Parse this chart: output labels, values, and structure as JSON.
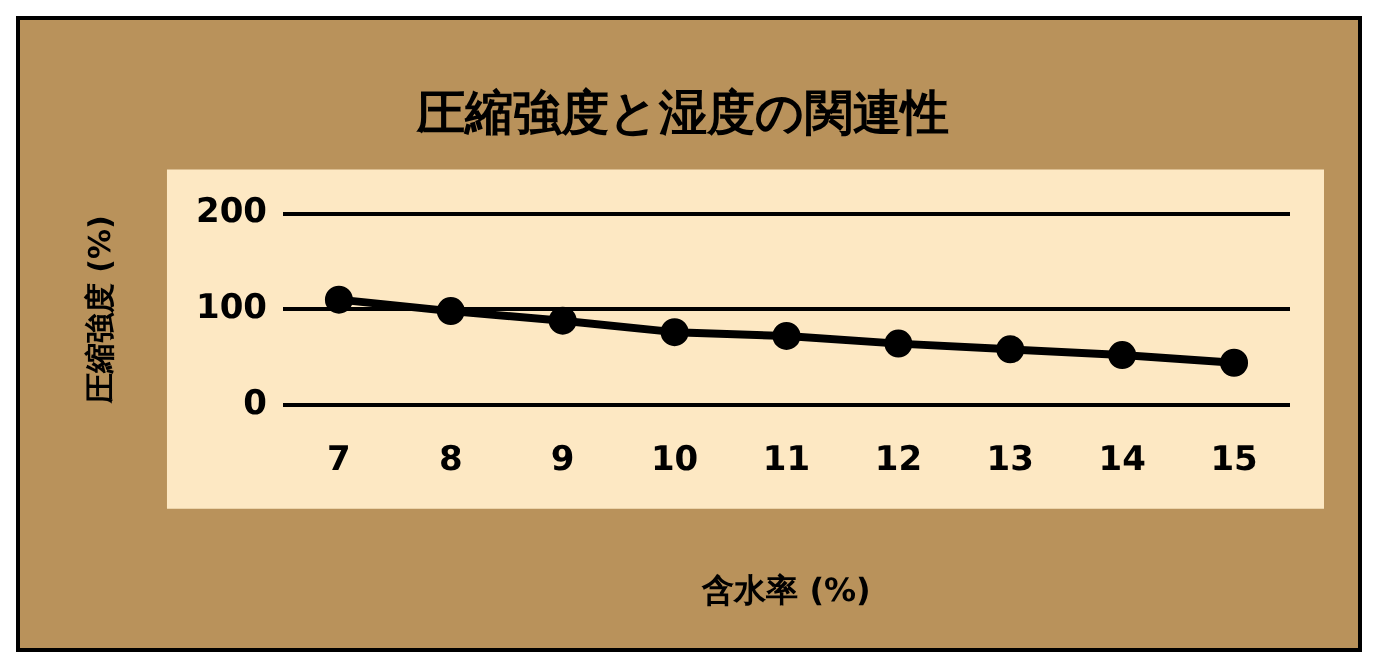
{
  "chart_data": {
    "type": "line",
    "title": "圧縮強度と湿度の関連性",
    "xlabel": "含水率 (%)",
    "ylabel": "圧縮強度 (%)",
    "categories": [
      "7",
      "8",
      "9",
      "10",
      "11",
      "12",
      "13",
      "14",
      "15"
    ],
    "series": [
      {
        "color": "#000000",
        "values": [
          110,
          98,
          88,
          76,
          72,
          64,
          58,
          52,
          44
        ]
      }
    ],
    "ylim": [
      0,
      200
    ],
    "yticks": [
      0,
      100,
      200
    ],
    "grid": "y",
    "marker": "circle",
    "line_style": "solid"
  }
}
